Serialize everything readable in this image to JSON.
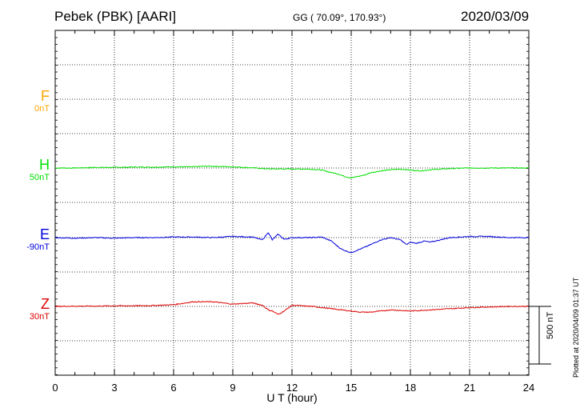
{
  "header": {
    "station": "Pebek (PBK)  [AARI]",
    "coords": "GG ( 70.09°, 170.93°)",
    "date": "2020/03/09"
  },
  "components": [
    {
      "key": "F",
      "letter": "F",
      "baseline": "0nT",
      "color": "#ffa500"
    },
    {
      "key": "H",
      "letter": "H",
      "baseline": "50nT",
      "color": "#00e000"
    },
    {
      "key": "E",
      "letter": "E",
      "baseline": "-90nT",
      "color": "#0000dd"
    },
    {
      "key": "Z",
      "letter": "Z",
      "baseline": "30nT",
      "color": "#dd0000"
    }
  ],
  "xaxis": {
    "label": "U T (hour)",
    "ticks": [
      "0",
      "3",
      "6",
      "9",
      "12",
      "15",
      "18",
      "21",
      "24"
    ]
  },
  "scale_bar": {
    "label": "500 nT",
    "value": 500
  },
  "footer": {
    "plotted": "Plotted at 2020/04/09 01:37 UT"
  },
  "chart_data": {
    "type": "line",
    "title": "Pebek (PBK)  [AARI]",
    "xlabel": "U T (hour)",
    "ylabel": "",
    "xlim": [
      0,
      24
    ],
    "x_ticks": [
      0,
      3,
      6,
      9,
      12,
      15,
      18,
      21,
      24
    ],
    "scale_nT": 500,
    "grid": true,
    "series": [
      {
        "name": "F",
        "baseline_nT": 0,
        "color": "#ffa500",
        "x": [],
        "values": []
      },
      {
        "name": "H",
        "baseline_nT": 50,
        "color": "#00e000",
        "x": [
          0,
          1,
          2,
          3,
          4,
          5,
          6,
          7,
          7.5,
          8,
          9,
          10,
          10.5,
          11,
          12,
          13,
          13.5,
          14,
          14.3,
          14.7,
          15,
          15.3,
          15.7,
          16,
          16.5,
          17,
          17.5,
          18,
          18.5,
          19,
          20,
          21,
          22,
          23,
          24
        ],
        "values": [
          0,
          0,
          5,
          5,
          8,
          8,
          10,
          10,
          15,
          15,
          10,
          2,
          -5,
          -8,
          -8,
          -10,
          -18,
          -40,
          -50,
          -75,
          -85,
          -75,
          -60,
          -40,
          -25,
          -15,
          -10,
          -18,
          -25,
          -15,
          -5,
          0,
          0,
          0,
          0
        ]
      },
      {
        "name": "E",
        "baseline_nT": -90,
        "color": "#0000dd",
        "x": [
          0,
          1,
          2,
          3,
          4,
          5,
          6,
          7,
          8,
          9,
          10,
          10.5,
          10.8,
          11,
          11.3,
          11.6,
          12,
          13,
          13.5,
          14,
          14.2,
          14.5,
          14.8,
          15,
          15.3,
          15.6,
          16,
          16.5,
          17,
          17.5,
          17.8,
          18,
          18.3,
          18.7,
          19,
          20,
          21,
          22,
          23,
          24
        ],
        "values": [
          0,
          -5,
          0,
          -5,
          0,
          0,
          5,
          5,
          0,
          10,
          5,
          -20,
          45,
          -20,
          30,
          -15,
          0,
          0,
          5,
          -30,
          -60,
          -100,
          -120,
          -130,
          -110,
          -90,
          -60,
          -20,
          0,
          -20,
          -60,
          -40,
          -50,
          -30,
          -40,
          0,
          10,
          10,
          0,
          0
        ]
      },
      {
        "name": "Z",
        "baseline_nT": 30,
        "color": "#dd0000",
        "x": [
          0,
          1,
          2,
          3,
          4,
          5,
          6,
          7,
          8,
          9,
          10,
          10.5,
          10.8,
          11,
          11.3,
          11.6,
          12,
          13,
          13.5,
          14,
          14.5,
          15,
          15.5,
          16,
          16.5,
          17,
          18,
          19,
          20,
          21,
          22,
          23,
          24
        ],
        "values": [
          0,
          2,
          2,
          5,
          5,
          8,
          15,
          40,
          40,
          20,
          30,
          10,
          -30,
          -40,
          -70,
          -40,
          10,
          0,
          -10,
          -20,
          -30,
          -40,
          -50,
          -50,
          -40,
          -30,
          -40,
          -30,
          -20,
          -10,
          -5,
          0,
          0
        ]
      }
    ]
  }
}
